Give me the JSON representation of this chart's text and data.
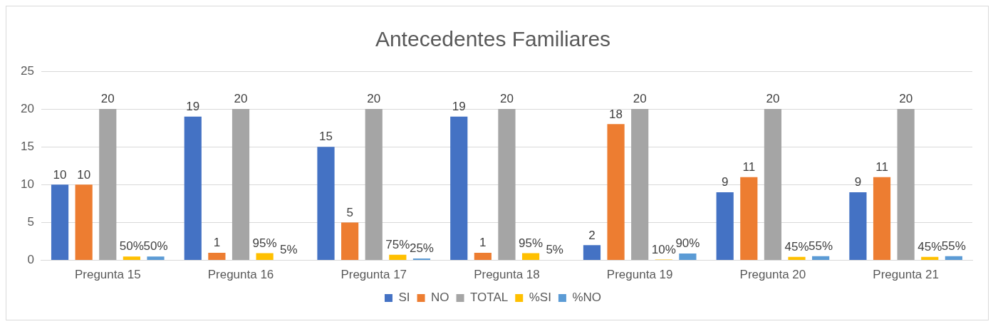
{
  "chart_data": {
    "type": "bar",
    "title": "Antecedentes Familiares",
    "categories": [
      "Pregunta 15",
      "Pregunta 16",
      "Pregunta 17",
      "Pregunta 18",
      "Pregunta 19",
      "Pregunta 20",
      "Pregunta 21"
    ],
    "series": [
      {
        "name": "SI",
        "color": "#4472c4",
        "values": [
          10,
          19,
          15,
          19,
          2,
          9,
          9
        ],
        "value_labels": [
          "10",
          "19",
          "15",
          "19",
          "2",
          "9",
          "9"
        ]
      },
      {
        "name": "NO",
        "color": "#ed7d31",
        "values": [
          10,
          1,
          5,
          1,
          18,
          11,
          11
        ],
        "value_labels": [
          "10",
          "1",
          "5",
          "1",
          "18",
          "11",
          "11"
        ]
      },
      {
        "name": "TOTAL",
        "color": "#a5a5a5",
        "values": [
          20,
          20,
          20,
          20,
          20,
          20,
          20
        ],
        "value_labels": [
          "20",
          "20",
          "20",
          "20",
          "20",
          "20",
          "20"
        ]
      },
      {
        "name": "%SI",
        "color": "#ffc000",
        "values": [
          0.5,
          0.95,
          0.75,
          0.95,
          0.1,
          0.45,
          0.45
        ],
        "value_labels": [
          "50%",
          "95%",
          "75%",
          "95%",
          "10%",
          "45%",
          "45%"
        ]
      },
      {
        "name": "%NO",
        "color": "#5b9bd5",
        "values": [
          0.5,
          0.05,
          0.25,
          0.05,
          0.9,
          0.55,
          0.55
        ],
        "value_labels": [
          "50%",
          "5%",
          "25%",
          "5%",
          "90%",
          "55%",
          "55%"
        ]
      }
    ],
    "ylim": [
      0,
      25
    ],
    "yticks": [
      0,
      5,
      10,
      15,
      20,
      25
    ],
    "grid": "y",
    "legend": "bottom"
  }
}
